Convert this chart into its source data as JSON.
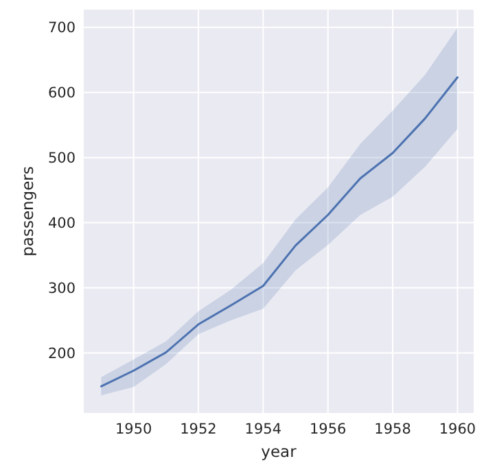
{
  "chart_data": {
    "type": "line",
    "xlabel": "year",
    "ylabel": "passengers",
    "x": [
      1949,
      1950,
      1951,
      1952,
      1953,
      1954,
      1955,
      1956,
      1957,
      1958,
      1959,
      1960
    ],
    "series": [
      {
        "color": "#4c72b0",
        "values": [
          149,
          173,
          201,
          244,
          273,
          303,
          365,
          412,
          468,
          507,
          560,
          623
        ],
        "lower": [
          135,
          148,
          183,
          229,
          250,
          268,
          327,
          366,
          412,
          440,
          486,
          544
        ],
        "upper": [
          163,
          190,
          218,
          264,
          297,
          338,
          405,
          454,
          521,
          572,
          627,
          699
        ]
      }
    ],
    "xlim": [
      1948.46,
      1960.5
    ],
    "ylim": [
      108,
      727
    ],
    "xticks": [
      1950,
      1952,
      1954,
      1956,
      1958,
      1960
    ],
    "yticks": [
      200,
      300,
      400,
      500,
      600,
      700
    ],
    "grid": true,
    "line_style": "solid",
    "marker": "none"
  }
}
